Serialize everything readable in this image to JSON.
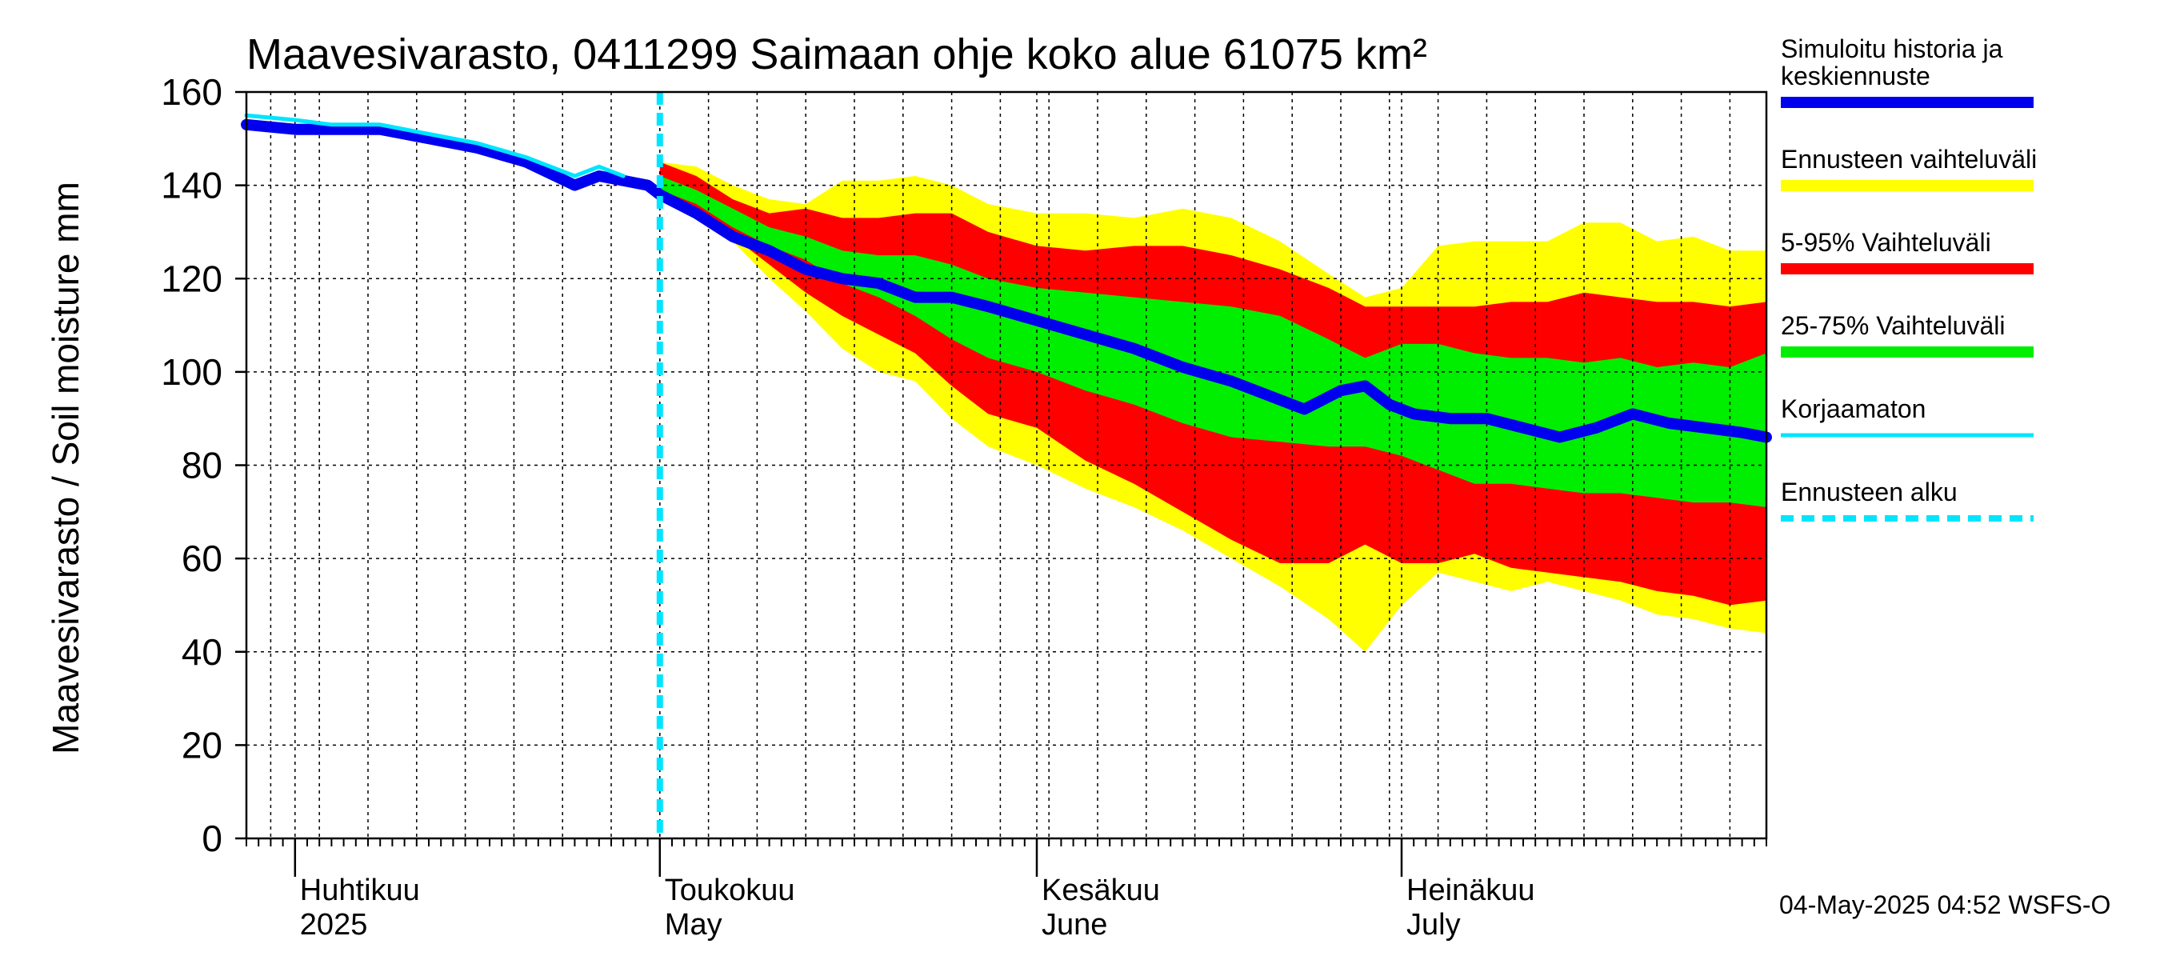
{
  "chart_data": {
    "type": "area",
    "title": "Maavesivarasto, 0411299 Saimaan ohje koko alue 61075 km²",
    "ylabel": "Maavesivarasto / Soil moisture   mm",
    "xlabel": "",
    "ylim": [
      0,
      160
    ],
    "yticks": [
      0,
      20,
      40,
      60,
      80,
      100,
      120,
      140,
      160
    ],
    "xlim": [
      "2025-03-28",
      "2025-07-31"
    ],
    "grid": true,
    "legend_position": "right",
    "forecast_start": "2025-05-01",
    "month_labels": [
      {
        "date": "2025-04-01",
        "fi": "Huhtikuu",
        "en": "2025"
      },
      {
        "date": "2025-05-01",
        "fi": "Toukokuu",
        "en": "May"
      },
      {
        "date": "2025-06-01",
        "fi": "Kesäkuu",
        "en": "June"
      },
      {
        "date": "2025-07-01",
        "fi": "Heinäkuu",
        "en": "July"
      }
    ],
    "legend": [
      {
        "label": "Simuloitu historia ja keskiennuste",
        "label_lines": [
          "Simuloitu historia ja",
          "keskiennuste"
        ],
        "color": "#0000ee",
        "style": "thick-line"
      },
      {
        "label": "Ennusteen vaihteluväli",
        "label_lines": [
          "Ennusteen vaihteluväli"
        ],
        "color": "#ffff00",
        "style": "band"
      },
      {
        "label": "5-95% Vaihteluväli",
        "label_lines": [
          "5-95% Vaihteluväli"
        ],
        "color": "#ff0000",
        "style": "band"
      },
      {
        "label": "25-75% Vaihteluväli",
        "label_lines": [
          "25-75% Vaihteluväli"
        ],
        "color": "#00ee00",
        "style": "band"
      },
      {
        "label": "Korjaamaton",
        "label_lines": [
          "Korjaamaton"
        ],
        "color": "#00e5ff",
        "style": "line"
      },
      {
        "label": "Ennusteen alku",
        "label_lines": [
          "Ennusteen alku"
        ],
        "color": "#00e5ff",
        "style": "dashed"
      }
    ],
    "series": [
      {
        "name": "Simuloitu historia ja keskiennuste",
        "color": "#0000ee",
        "x": [
          "2025-03-28",
          "2025-04-01",
          "2025-04-04",
          "2025-04-08",
          "2025-04-12",
          "2025-04-16",
          "2025-04-20",
          "2025-04-24",
          "2025-04-26",
          "2025-04-28",
          "2025-04-30",
          "2025-05-01",
          "2025-05-04",
          "2025-05-07",
          "2025-05-10",
          "2025-05-13",
          "2025-05-16",
          "2025-05-19",
          "2025-05-22",
          "2025-05-25",
          "2025-05-28",
          "2025-06-01",
          "2025-06-05",
          "2025-06-09",
          "2025-06-13",
          "2025-06-17",
          "2025-06-20",
          "2025-06-23",
          "2025-06-26",
          "2025-06-28",
          "2025-06-30",
          "2025-07-02",
          "2025-07-05",
          "2025-07-08",
          "2025-07-11",
          "2025-07-14",
          "2025-07-17",
          "2025-07-20",
          "2025-07-23",
          "2025-07-26",
          "2025-07-29",
          "2025-07-31"
        ],
        "values": [
          153,
          152,
          152,
          152,
          150,
          148,
          145,
          140,
          142,
          141,
          140,
          138,
          134,
          129,
          126,
          122,
          120,
          119,
          116,
          116,
          114,
          111,
          108,
          105,
          101,
          98,
          95,
          92,
          96,
          97,
          93,
          91,
          90,
          90,
          88,
          86,
          88,
          91,
          89,
          88,
          87,
          86
        ]
      },
      {
        "name": "Korjaamaton",
        "color": "#00e5ff",
        "x": [
          "2025-03-28",
          "2025-04-01",
          "2025-04-04",
          "2025-04-08",
          "2025-04-12",
          "2025-04-16",
          "2025-04-20",
          "2025-04-24",
          "2025-04-26",
          "2025-04-28"
        ],
        "values": [
          155,
          154,
          153,
          153,
          151,
          149,
          146,
          142,
          144,
          142
        ]
      }
    ],
    "bands": [
      {
        "name": "Ennusteen vaihteluväli",
        "color": "#ffff00",
        "x": [
          "2025-05-01",
          "2025-05-04",
          "2025-05-07",
          "2025-05-10",
          "2025-05-13",
          "2025-05-16",
          "2025-05-19",
          "2025-05-22",
          "2025-05-25",
          "2025-05-28",
          "2025-06-01",
          "2025-06-05",
          "2025-06-09",
          "2025-06-13",
          "2025-06-17",
          "2025-06-21",
          "2025-06-25",
          "2025-06-28",
          "2025-07-01",
          "2025-07-04",
          "2025-07-07",
          "2025-07-10",
          "2025-07-13",
          "2025-07-16",
          "2025-07-19",
          "2025-07-22",
          "2025-07-25",
          "2025-07-28",
          "2025-07-31"
        ],
        "upper": [
          145,
          144,
          140,
          137,
          136,
          141,
          141,
          142,
          140,
          136,
          134,
          134,
          133,
          135,
          133,
          128,
          121,
          116,
          118,
          127,
          128,
          128,
          128,
          132,
          132,
          128,
          129,
          126,
          126
        ],
        "lower": [
          137,
          133,
          128,
          120,
          113,
          105,
          100,
          98,
          90,
          84,
          80,
          75,
          71,
          66,
          60,
          54,
          47,
          40,
          50,
          57,
          55,
          53,
          55,
          53,
          51,
          48,
          47,
          45,
          44
        ]
      },
      {
        "name": "5-95% Vaihteluväli",
        "color": "#ff0000",
        "x": [
          "2025-05-01",
          "2025-05-04",
          "2025-05-07",
          "2025-05-10",
          "2025-05-13",
          "2025-05-16",
          "2025-05-19",
          "2025-05-22",
          "2025-05-25",
          "2025-05-28",
          "2025-06-01",
          "2025-06-05",
          "2025-06-09",
          "2025-06-13",
          "2025-06-17",
          "2025-06-21",
          "2025-06-25",
          "2025-06-28",
          "2025-07-01",
          "2025-07-04",
          "2025-07-07",
          "2025-07-10",
          "2025-07-13",
          "2025-07-16",
          "2025-07-19",
          "2025-07-22",
          "2025-07-25",
          "2025-07-28",
          "2025-07-31"
        ],
        "upper": [
          145,
          142,
          137,
          134,
          135,
          133,
          133,
          134,
          134,
          130,
          127,
          126,
          127,
          127,
          125,
          122,
          118,
          114,
          114,
          114,
          114,
          115,
          115,
          117,
          116,
          115,
          115,
          114,
          115
        ],
        "lower": [
          138,
          134,
          129,
          123,
          117,
          112,
          108,
          104,
          97,
          91,
          88,
          81,
          76,
          70,
          64,
          59,
          59,
          63,
          59,
          59,
          61,
          58,
          57,
          56,
          55,
          53,
          52,
          50,
          51
        ]
      },
      {
        "name": "25-75% Vaihteluväli",
        "color": "#00ee00",
        "x": [
          "2025-05-01",
          "2025-05-04",
          "2025-05-07",
          "2025-05-10",
          "2025-05-13",
          "2025-05-16",
          "2025-05-19",
          "2025-05-22",
          "2025-05-25",
          "2025-05-28",
          "2025-06-01",
          "2025-06-05",
          "2025-06-09",
          "2025-06-13",
          "2025-06-17",
          "2025-06-21",
          "2025-06-25",
          "2025-06-28",
          "2025-07-01",
          "2025-07-04",
          "2025-07-07",
          "2025-07-10",
          "2025-07-13",
          "2025-07-16",
          "2025-07-19",
          "2025-07-22",
          "2025-07-25",
          "2025-07-28",
          "2025-07-31"
        ],
        "upper": [
          142,
          139,
          135,
          131,
          129,
          126,
          125,
          125,
          123,
          120,
          118,
          117,
          116,
          115,
          114,
          112,
          107,
          103,
          106,
          106,
          104,
          103,
          103,
          102,
          103,
          101,
          102,
          101,
          104
        ],
        "lower": [
          139,
          136,
          131,
          127,
          124,
          119,
          116,
          112,
          107,
          103,
          100,
          96,
          93,
          89,
          86,
          85,
          84,
          84,
          82,
          79,
          76,
          76,
          75,
          74,
          74,
          73,
          72,
          72,
          71
        ]
      }
    ]
  },
  "footer": {
    "timestamp": "04-May-2025 04:52 WSFS-O"
  }
}
